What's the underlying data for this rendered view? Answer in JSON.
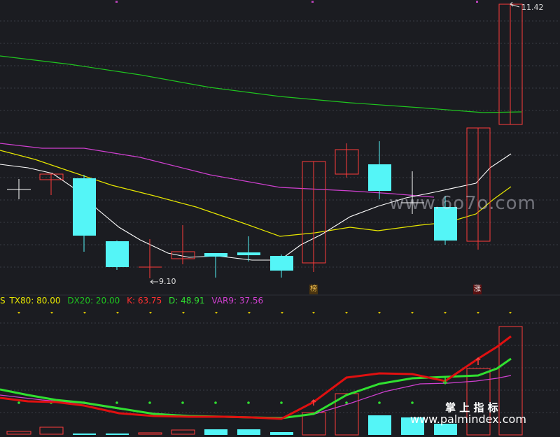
{
  "chart_data": {
    "type": "candlestick",
    "main_panel": {
      "max_label": "11.42",
      "min_label": "9.10",
      "badges": [
        "榜",
        "涨"
      ],
      "colors": {
        "up": "#ff3b3b",
        "down": "#54f5f7",
        "ma_green": "#1fc51f",
        "ma_magenta": "#d040d0",
        "ma_yellow": "#e6e600",
        "ma_white": "#ffffff"
      }
    },
    "indicator_panel": {
      "prefix": "S",
      "series": [
        {
          "name": "TX80",
          "value": "80.00",
          "color": "#e6e600"
        },
        {
          "name": "DX20",
          "value": "20.00",
          "color": "#1fc51f"
        },
        {
          "name": "K",
          "value": "63.75",
          "color": "#ff3030"
        },
        {
          "name": "D",
          "value": "48.91",
          "color": "#30e030"
        },
        {
          "name": "VAR9",
          "value": "37.56",
          "color": "#d040d0"
        }
      ]
    }
  },
  "watermarks": {
    "site_a": "www.6o7o.com",
    "site_b_cn": "掌 上 指 标",
    "site_b": "www.palmindex.com"
  }
}
